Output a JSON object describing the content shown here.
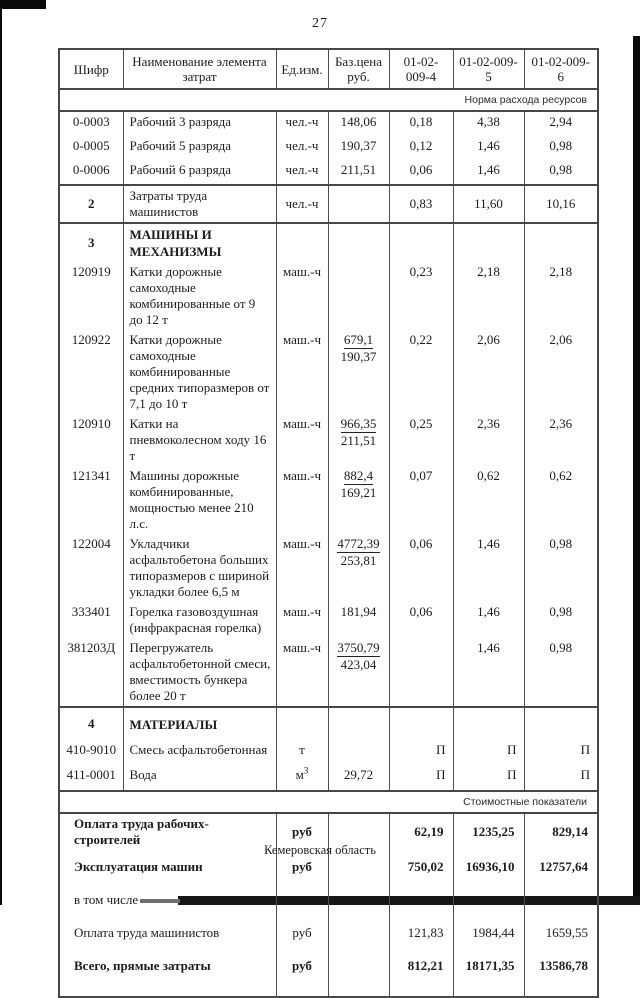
{
  "page": {
    "number": "27",
    "footer": "Кемеровская область"
  },
  "table": {
    "header": {
      "code": "Шифр",
      "name": "Наименование элемента затрат",
      "unit": "Ед.изм.",
      "price": "Баз.цена\nруб.",
      "c4": "01-02-009-4",
      "c5": "01-02-009-5",
      "c6": "01-02-009-6"
    },
    "bands": {
      "resources": "Норма расхода ресурсов",
      "cost": "Стоимостные показатели"
    },
    "rows": [
      {
        "code": "0-0003",
        "name": "Рабочий 3 разряда",
        "unit": "чел.-ч",
        "price": "148,06",
        "v4": "0,18",
        "v5": "4,38",
        "v6": "2,94"
      },
      {
        "code": "0-0005",
        "name": "Рабочий 5 разряда",
        "unit": "чел.-ч",
        "price": "190,37",
        "v4": "0,12",
        "v5": "1,46",
        "v6": "0,98"
      },
      {
        "code": "0-0006",
        "name": "Рабочий 6 разряда",
        "unit": "чел.-ч",
        "price": "211,51",
        "v4": "0,06",
        "v5": "1,46",
        "v6": "0,98"
      },
      {
        "code": "2",
        "name": "Затраты труда машинистов",
        "unit": "чел.-ч",
        "v4": "0,83",
        "v5": "11,60",
        "v6": "10,16"
      },
      {
        "code": "3",
        "name": "МАШИНЫ И МЕХАНИЗМЫ"
      },
      {
        "code": "120919",
        "name": "Катки дорожные самоходные комбинированные от 9 до 12 т",
        "unit": "маш.-ч",
        "v4": "0,23",
        "v5": "2,18",
        "v6": "2,18"
      },
      {
        "code": "120922",
        "name": "Катки дорожные самоходные комбинированные средних типоразмеров от 7,1 до 10 т",
        "unit": "маш.-ч",
        "price_num": "679,1",
        "price_den": "190,37",
        "v4": "0,22",
        "v5": "2,06",
        "v6": "2,06"
      },
      {
        "code": "120910",
        "name": "Катки на пневмоколесном ходу 16 т",
        "unit": "маш.-ч",
        "price_num": "966,35",
        "price_den": "211,51",
        "v4": "0,25",
        "v5": "2,36",
        "v6": "2,36"
      },
      {
        "code": "121341",
        "name": "Машины дорожные комбинированные, мощностью менее 210 л.с.",
        "unit": "маш.-ч",
        "price_num": "882,4",
        "price_den": "169,21",
        "v4": "0,07",
        "v5": "0,62",
        "v6": "0,62"
      },
      {
        "code": "122004",
        "name": "Укладчики асфальтобетона больших типоразмеров с шириной укладки более 6,5 м",
        "unit": "маш.-ч",
        "price_num": "4772,39",
        "price_den": "253,81",
        "v4": "0,06",
        "v5": "1,46",
        "v6": "0,98"
      },
      {
        "code": "333401",
        "name": "Горелка газовоздушная (инфракрасная горелка)",
        "unit": "маш.-ч",
        "price": "181,94",
        "v4": "0,06",
        "v5": "1,46",
        "v6": "0,98"
      },
      {
        "code": "381203Д",
        "name": "Перегружатель асфальтобетонной смеси, вместимость бункера более 20 т",
        "unit": "маш.-ч",
        "price_num": "3750,79",
        "price_den": "423,04",
        "v5": "1,46",
        "v6": "0,98"
      },
      {
        "code": "4",
        "name": "МАТЕРИАЛЫ"
      },
      {
        "code": "410-9010",
        "name": "Смесь асфальтобетонная",
        "unit": "т",
        "v4": "П",
        "v5": "П",
        "v6": "П"
      },
      {
        "code": "411-0001",
        "name": "Вода",
        "unit": "м",
        "unit_sup": "3",
        "price": "29,72",
        "v4": "П",
        "v5": "П",
        "v6": "П"
      }
    ],
    "cost_rows": [
      {
        "label": "Оплата труда рабочих-строителей",
        "unit": "руб",
        "v4": "62,19",
        "v5": "1235,25",
        "v6": "829,14"
      },
      {
        "label": "Эксплуатация машин",
        "unit": "руб",
        "v4": "750,02",
        "v5": "16936,10",
        "v6": "12757,64"
      },
      {
        "label": "в том числе"
      },
      {
        "label": "Оплата труда машинистов",
        "unit": "руб",
        "v4": "121,83",
        "v5": "1984,44",
        "v6": "1659,55"
      },
      {
        "label": "Всего, прямые затраты",
        "unit": "руб",
        "v4": "812,21",
        "v5": "18171,35",
        "v6": "13586,78"
      }
    ]
  }
}
